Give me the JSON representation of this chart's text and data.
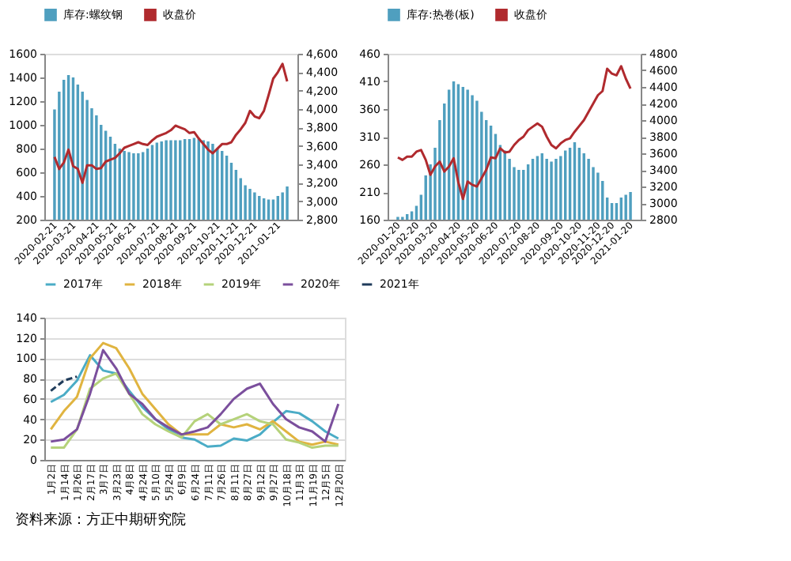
{
  "chart_data": [
    {
      "type": "bar",
      "legend": "top",
      "grid": false,
      "categories": [
        "2020-02-21",
        null,
        null,
        null,
        "2020-03-21",
        null,
        null,
        null,
        null,
        "2020-04-21",
        null,
        null,
        null,
        "2020-05-21",
        null,
        null,
        null,
        "2020-06-21",
        null,
        null,
        null,
        null,
        "2020-07-21",
        null,
        null,
        null,
        "2020-08-21",
        null,
        null,
        null,
        "2020-09-21",
        null,
        null,
        null,
        null,
        "2020-10-21",
        null,
        null,
        null,
        "2020-11-21",
        null,
        null,
        null,
        "2020-12-21",
        null,
        null,
        null,
        null,
        "2021-01-21",
        null,
        null
      ],
      "ylim": [
        200,
        1600
      ],
      "yticks": [
        200,
        400,
        600,
        800,
        1000,
        1200,
        1400,
        1600
      ],
      "y2lim": [
        2800,
        4600
      ],
      "y2ticks": [
        {
          "value": 2800,
          "label": "2,800"
        },
        {
          "value": 3000,
          "label": "3,000"
        },
        {
          "value": 3200,
          "label": "3,200"
        },
        {
          "value": 3400,
          "label": "3,400"
        },
        {
          "value": 3600,
          "label": "3,600"
        },
        {
          "value": 3800,
          "label": "3,800"
        },
        {
          "value": 4000,
          "label": "4,000"
        },
        {
          "value": 4200,
          "label": "4,200"
        },
        {
          "value": 4400,
          "label": "4,400"
        },
        {
          "value": 4600,
          "label": "4,600"
        }
      ],
      "series": [
        {
          "name": "库存:螺纹钢",
          "type": "bar",
          "color": "#4f9fbf",
          "values": [
            1130,
            1280,
            1380,
            1420,
            1400,
            1340,
            1280,
            1210,
            1140,
            1080,
            1000,
            950,
            900,
            840,
            800,
            780,
            770,
            760,
            760,
            770,
            800,
            830,
            850,
            860,
            870,
            870,
            870,
            870,
            880,
            880,
            890,
            880,
            870,
            860,
            840,
            800,
            780,
            740,
            680,
            620,
            550,
            490,
            460,
            430,
            400,
            380,
            370,
            370,
            400,
            430,
            480
          ]
        },
        {
          "name": "收盘价",
          "type": "line",
          "axis": "y2",
          "color": "#b02a2e",
          "values": [
            3480,
            3350,
            3420,
            3560,
            3380,
            3350,
            3200,
            3390,
            3390,
            3350,
            3360,
            3430,
            3450,
            3470,
            3520,
            3580,
            3600,
            3620,
            3640,
            3620,
            3610,
            3660,
            3700,
            3720,
            3740,
            3770,
            3820,
            3800,
            3780,
            3740,
            3750,
            3680,
            3620,
            3560,
            3520,
            3570,
            3620,
            3620,
            3640,
            3720,
            3780,
            3850,
            3980,
            3920,
            3900,
            3980,
            4150,
            4330,
            4400,
            4490,
            4300
          ]
        }
      ]
    },
    {
      "type": "bar",
      "legend": "top",
      "grid": false,
      "categories": [
        "2020-01-20",
        null,
        null,
        null,
        "2020-02-20",
        null,
        null,
        null,
        "2020-03-20",
        null,
        null,
        null,
        null,
        "2020-04-20",
        null,
        null,
        null,
        "2020-05-20",
        null,
        null,
        null,
        "2020-06-20",
        null,
        null,
        null,
        null,
        "2020-07-20",
        null,
        null,
        null,
        "2020-08-20",
        null,
        null,
        null,
        null,
        "2020-09-20",
        null,
        null,
        null,
        "2020-10-20",
        null,
        null,
        null,
        "2020-11-20",
        null,
        null,
        "2020-12-20",
        null,
        null,
        null,
        "2021-01-20"
      ],
      "ylim": [
        160,
        460
      ],
      "yticks": [
        160,
        210,
        260,
        310,
        360,
        410,
        460
      ],
      "y2lim": [
        2800,
        4800
      ],
      "y2ticks": [
        2800,
        3000,
        3200,
        3400,
        3600,
        3800,
        4000,
        4200,
        4400,
        4600,
        4800
      ],
      "series": [
        {
          "name": "库存:热卷(板)",
          "type": "bar",
          "color": "#4f9fbf",
          "values": [
            165,
            165,
            170,
            175,
            185,
            205,
            240,
            260,
            290,
            340,
            370,
            395,
            410,
            405,
            400,
            395,
            385,
            375,
            355,
            340,
            330,
            315,
            295,
            285,
            270,
            255,
            250,
            250,
            260,
            270,
            275,
            280,
            270,
            265,
            270,
            275,
            285,
            290,
            300,
            290,
            280,
            270,
            255,
            245,
            230,
            200,
            190,
            190,
            200,
            205,
            210
          ]
        },
        {
          "name": "收盘价",
          "type": "line",
          "axis": "y2",
          "color": "#b02a2e",
          "values": [
            3550,
            3520,
            3560,
            3560,
            3620,
            3640,
            3520,
            3340,
            3440,
            3500,
            3380,
            3440,
            3540,
            3250,
            3050,
            3260,
            3220,
            3200,
            3300,
            3400,
            3550,
            3540,
            3660,
            3610,
            3620,
            3700,
            3760,
            3800,
            3880,
            3920,
            3960,
            3920,
            3800,
            3700,
            3660,
            3720,
            3760,
            3780,
            3860,
            3930,
            4000,
            4100,
            4200,
            4300,
            4350,
            4620,
            4560,
            4540,
            4650,
            4500,
            4380
          ]
        }
      ]
    },
    {
      "type": "line",
      "legend": "top",
      "grid": "y",
      "annotations": [
        "资料来源：方正中期研究院"
      ],
      "categories": [
        "1月2日",
        "1月14日",
        "1月26日",
        "2月17日",
        "3月7日",
        "3月23日",
        "4月8日",
        "4月24日",
        "5月10日",
        "5月24日",
        "6月9日",
        "6月24日",
        "7月11日",
        "7月26日",
        "8月11日",
        "8月27日",
        "9月12日",
        "9月27日",
        "10月18日",
        "11月3日",
        "11月19日",
        "12月5日",
        "12月20日"
      ],
      "ylim": [
        0,
        140
      ],
      "yticks": [
        0,
        20,
        40,
        60,
        80,
        100,
        120,
        140
      ],
      "series": [
        {
          "name": "2017年",
          "color": "#4bacc6",
          "values": [
            57,
            64,
            78,
            103,
            88,
            85,
            68,
            52,
            40,
            30,
            22,
            20,
            13,
            14,
            21,
            19,
            25,
            37,
            48,
            46,
            38,
            28,
            21
          ]
        },
        {
          "name": "2018年",
          "color": "#e0b440",
          "values": [
            30,
            48,
            62,
            100,
            115,
            110,
            90,
            65,
            50,
            35,
            25,
            25,
            25,
            35,
            32,
            35,
            30,
            38,
            28,
            18,
            15,
            18,
            15
          ]
        },
        {
          "name": "2019年",
          "color": "#b5d27a",
          "values": [
            12,
            12,
            30,
            70,
            80,
            85,
            65,
            45,
            35,
            28,
            22,
            38,
            45,
            35,
            40,
            45,
            38,
            35,
            20,
            17,
            12,
            14,
            14
          ]
        },
        {
          "name": "2020年",
          "color": "#7b4f9d",
          "values": [
            18,
            20,
            30,
            65,
            108,
            90,
            65,
            55,
            40,
            32,
            25,
            28,
            32,
            45,
            60,
            70,
            75,
            55,
            40,
            32,
            28,
            18,
            55
          ]
        },
        {
          "name": "2021年",
          "color": "#1f3b5a",
          "line_style": "dashed",
          "values": [
            68,
            78,
            82,
            null,
            null,
            null,
            null,
            null,
            null,
            null,
            null,
            null,
            null,
            null,
            null,
            null,
            null,
            null,
            null,
            null,
            null,
            null,
            null
          ]
        }
      ]
    }
  ]
}
